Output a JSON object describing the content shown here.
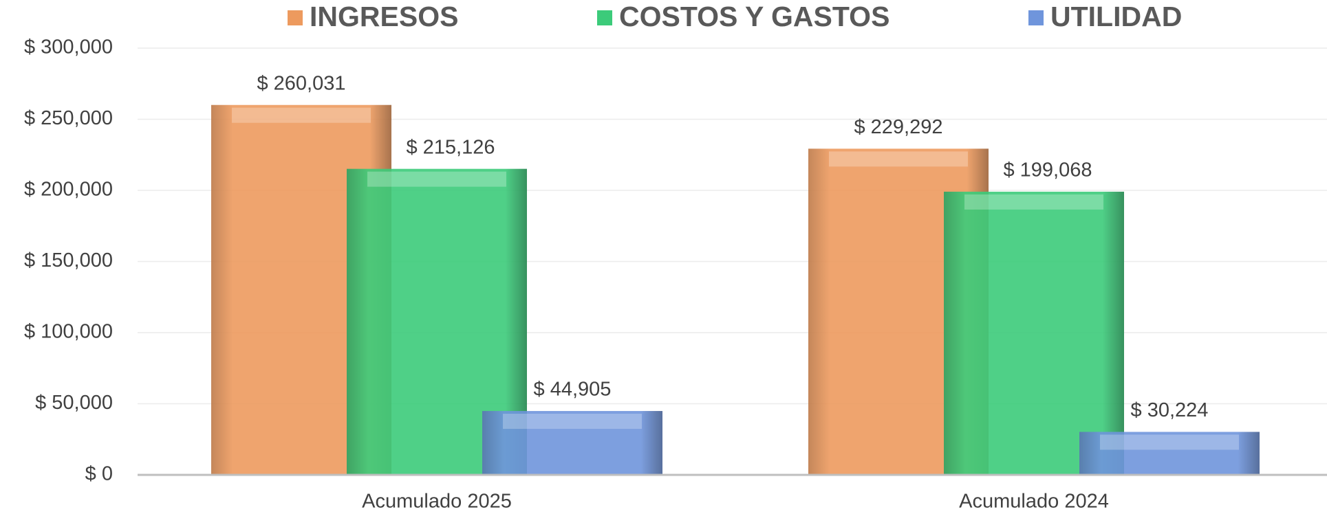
{
  "chart_data": {
    "type": "bar",
    "categories": [
      "Acumulado 2025",
      "Acumulado 2024"
    ],
    "series": [
      {
        "name": "INGRESOS",
        "color": "#ED9A5E",
        "values": [
          260031,
          229292
        ],
        "value_labels": [
          "$ 260,031",
          "$ 229,292"
        ]
      },
      {
        "name": "COSTOS Y GASTOS",
        "color": "#3CCB7A",
        "values": [
          215126,
          199068
        ],
        "value_labels": [
          "$ 215,126",
          "$ 199,068"
        ]
      },
      {
        "name": "UTILIDAD",
        "color": "#6F95DC",
        "values": [
          44905,
          30224
        ],
        "value_labels": [
          "$ 44,905",
          "$ 30,224"
        ]
      }
    ],
    "ylim": [
      0,
      300000
    ],
    "yticks": [
      {
        "value": 0,
        "label": "$ 0"
      },
      {
        "value": 50000,
        "label": "$ 50,000"
      },
      {
        "value": 100000,
        "label": "$ 100,000"
      },
      {
        "value": 150000,
        "label": "$ 150,000"
      },
      {
        "value": 200000,
        "label": "$ 200,000"
      },
      {
        "value": 250000,
        "label": "$ 250,000"
      },
      {
        "value": 300000,
        "label": "$ 300,000"
      }
    ],
    "grid": true,
    "legend": "top"
  }
}
